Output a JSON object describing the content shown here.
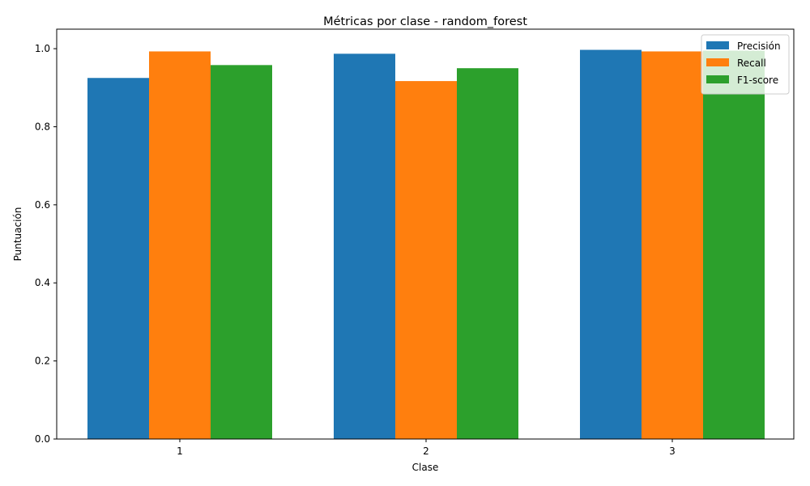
{
  "chart_data": {
    "type": "bar",
    "title": "Métricas por clase - random_forest",
    "xlabel": "Clase",
    "ylabel": "Puntuación",
    "categories": [
      "1",
      "2",
      "3"
    ],
    "series": [
      {
        "name": "Precisión",
        "color": "#1f77b4",
        "values": [
          0.925,
          0.987,
          0.997
        ]
      },
      {
        "name": "Recall",
        "color": "#ff7f0e",
        "values": [
          0.993,
          0.917,
          0.993
        ]
      },
      {
        "name": "F1-score",
        "color": "#2ca02c",
        "values": [
          0.958,
          0.95,
          0.995
        ]
      }
    ],
    "ylim": [
      0,
      1.05
    ],
    "yticks": [
      "0.0",
      "0.2",
      "0.4",
      "0.6",
      "0.8",
      "1.0"
    ],
    "grid": false,
    "legend_position": "top-right"
  }
}
